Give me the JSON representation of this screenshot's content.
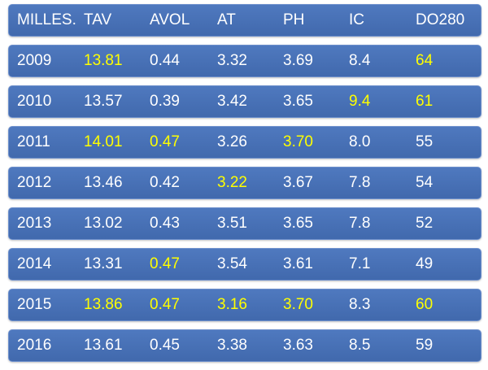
{
  "table": {
    "header": [
      "MILLES.",
      "TAV",
      "AVOL",
      "AT",
      "PH",
      "IC",
      "DO280"
    ],
    "rows": [
      [
        {
          "text": "2009"
        },
        {
          "text": "13.81",
          "color": "#ffff00"
        },
        {
          "text": "0.44"
        },
        {
          "text": "3.32"
        },
        {
          "text": "3.69"
        },
        {
          "text": "8.4"
        },
        {
          "text": "64",
          "color": "#ffff00"
        }
      ],
      [
        {
          "text": "2010"
        },
        {
          "text": "13.57"
        },
        {
          "text": "0.39"
        },
        {
          "text": "3.42"
        },
        {
          "text": "3.65"
        },
        {
          "text": "9.4",
          "color": "#ffff00"
        },
        {
          "text": "61",
          "color": "#ffff00"
        }
      ],
      [
        {
          "text": "2011"
        },
        {
          "text": "14.01",
          "color": "#ffff00"
        },
        {
          "text": "0.47",
          "color": "#ffff00"
        },
        {
          "text": "3.26"
        },
        {
          "text": "3.70",
          "color": "#ffff00"
        },
        {
          "text": "8.0"
        },
        {
          "text": "55"
        }
      ],
      [
        {
          "text": "2012"
        },
        {
          "text": "13.46"
        },
        {
          "text": "0.42"
        },
        {
          "text": "3.22",
          "color": "#ffff00"
        },
        {
          "text": "3.67"
        },
        {
          "text": "7.8"
        },
        {
          "text": "54"
        }
      ],
      [
        {
          "text": "2013"
        },
        {
          "text": "13.02"
        },
        {
          "text": "0.43"
        },
        {
          "text": "3.51"
        },
        {
          "text": "3.65"
        },
        {
          "text": "7.8"
        },
        {
          "text": "52"
        }
      ],
      [
        {
          "text": "2014"
        },
        {
          "text": "13.31"
        },
        {
          "text": "0.47",
          "color": "#ffff00"
        },
        {
          "text": "3.54"
        },
        {
          "text": "3.61"
        },
        {
          "text": "7.1"
        },
        {
          "text": "49"
        }
      ],
      [
        {
          "text": "2015"
        },
        {
          "text": "13.86",
          "color": "#ffff00"
        },
        {
          "text": "0.47",
          "color": "#ffff00"
        },
        {
          "text": "3.16",
          "color": "#ffff00"
        },
        {
          "text": "3.70",
          "color": "#ffff00"
        },
        {
          "text": "8.3"
        },
        {
          "text": "60",
          "color": "#ffff00"
        }
      ],
      [
        {
          "text": "2016"
        },
        {
          "text": "13.61"
        },
        {
          "text": "0.45"
        },
        {
          "text": "3.38"
        },
        {
          "text": "3.63"
        },
        {
          "text": "8.5"
        },
        {
          "text": "59"
        }
      ]
    ]
  }
}
